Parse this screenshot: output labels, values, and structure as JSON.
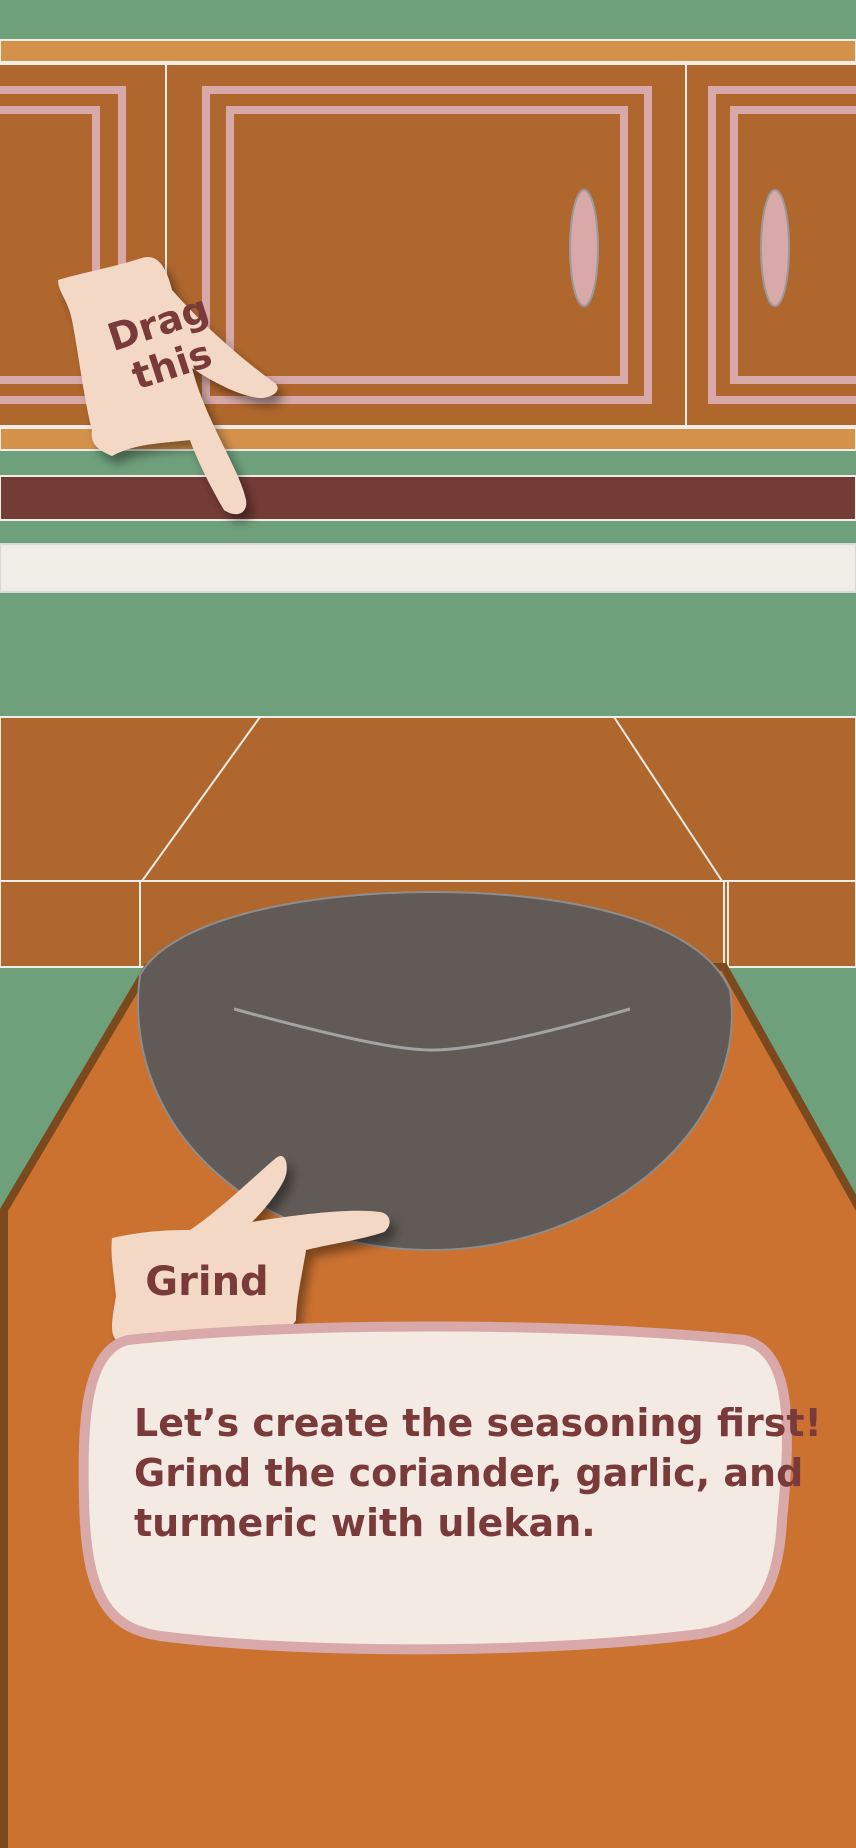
{
  "scene": {
    "name": "kitchen-seasoning-step",
    "colors": {
      "wall": "#6FA07C",
      "shelf_trim": "#D4914A",
      "cabinet": "#B0672E",
      "cabinet_border": "#D9A9A9",
      "backsplash_dark": "#743C36",
      "counter_strip": "#F0ECE6",
      "table": "#CC7230",
      "table_edge": "#7A4A1E",
      "mortar": "#615A56",
      "hand": "#F3D9C5",
      "text": "#7A3A3A",
      "bubble_fill": "#F4EAE4",
      "bubble_border": "#D9A9A9"
    }
  },
  "drag_hint": {
    "label": "Drag this",
    "icon": "pointing-hand-icon"
  },
  "grind_hint": {
    "label": "Grind",
    "icon": "pointing-hand-icon"
  },
  "instruction": {
    "lines": [
      "Let’s create the seasoning first!",
      "Grind the coriander, garlic, and",
      "turmeric with ulekan."
    ]
  },
  "tools": {
    "mortar": "ulekan-mortar"
  }
}
